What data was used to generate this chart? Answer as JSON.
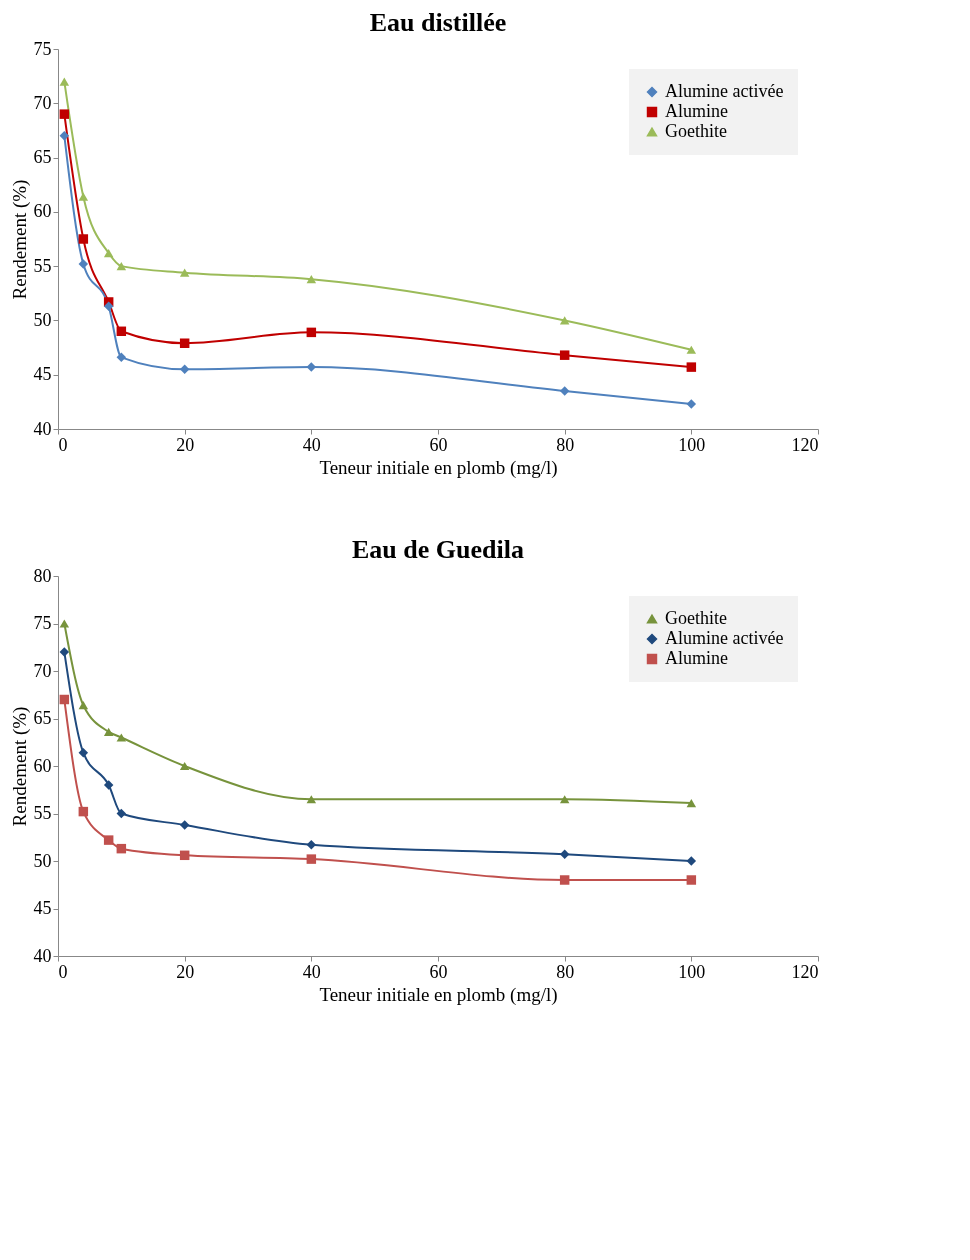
{
  "chart_data": [
    {
      "type": "line",
      "title": "Eau distillée",
      "xlabel": "Teneur initiale en plomb (mg/l)",
      "ylabel": "Rendement (%)",
      "x": [
        1,
        4,
        8,
        10,
        20,
        40,
        80,
        100
      ],
      "xlim": [
        0,
        120
      ],
      "xticks": [
        0,
        20,
        40,
        60,
        80,
        100,
        120
      ],
      "ylim": [
        40,
        75
      ],
      "yticks": [
        40,
        45,
        50,
        55,
        60,
        65,
        70,
        75
      ],
      "grid": false,
      "legend": "top right",
      "series": [
        {
          "name": "Alumine activée",
          "color": "#4f81bd",
          "marker": "diamond",
          "values": [
            67,
            55.2,
            51.3,
            46.6,
            45.5,
            45.7,
            43.5,
            42.3
          ]
        },
        {
          "name": "Alumine",
          "color": "#c00000",
          "marker": "square",
          "values": [
            69,
            57.5,
            51.7,
            49,
            47.9,
            48.9,
            46.8,
            45.7
          ]
        },
        {
          "name": "Goethite",
          "color": "#9bbb59",
          "marker": "triangle",
          "values": [
            72,
            61.4,
            56.2,
            55,
            54.4,
            53.8,
            50,
            47.3
          ]
        }
      ]
    },
    {
      "type": "line",
      "title": "Eau de Guedila",
      "xlabel": "Teneur initiale en plomb (mg/l)",
      "ylabel": "Rendement (%)",
      "x": [
        1,
        4,
        8,
        10,
        20,
        40,
        80,
        100
      ],
      "xlim": [
        0,
        120
      ],
      "xticks": [
        0,
        20,
        40,
        60,
        80,
        100,
        120
      ],
      "ylim": [
        40,
        80
      ],
      "yticks": [
        40,
        45,
        50,
        55,
        60,
        65,
        70,
        75,
        80
      ],
      "grid": false,
      "legend": "top right",
      "series": [
        {
          "name": "Goethite",
          "color": "#77933c",
          "marker": "triangle",
          "values": [
            75,
            66.4,
            63.6,
            63,
            60,
            56.5,
            56.5,
            56.1
          ]
        },
        {
          "name": "Alumine activée",
          "color": "#1f497d",
          "marker": "diamond",
          "values": [
            72,
            61.4,
            58,
            55,
            53.8,
            51.7,
            50.7,
            50
          ]
        },
        {
          "name": "Alumine",
          "color": "#c0504d",
          "marker": "square",
          "values": [
            67,
            55.2,
            52.2,
            51.3,
            50.6,
            50.2,
            48,
            48
          ]
        }
      ]
    }
  ]
}
